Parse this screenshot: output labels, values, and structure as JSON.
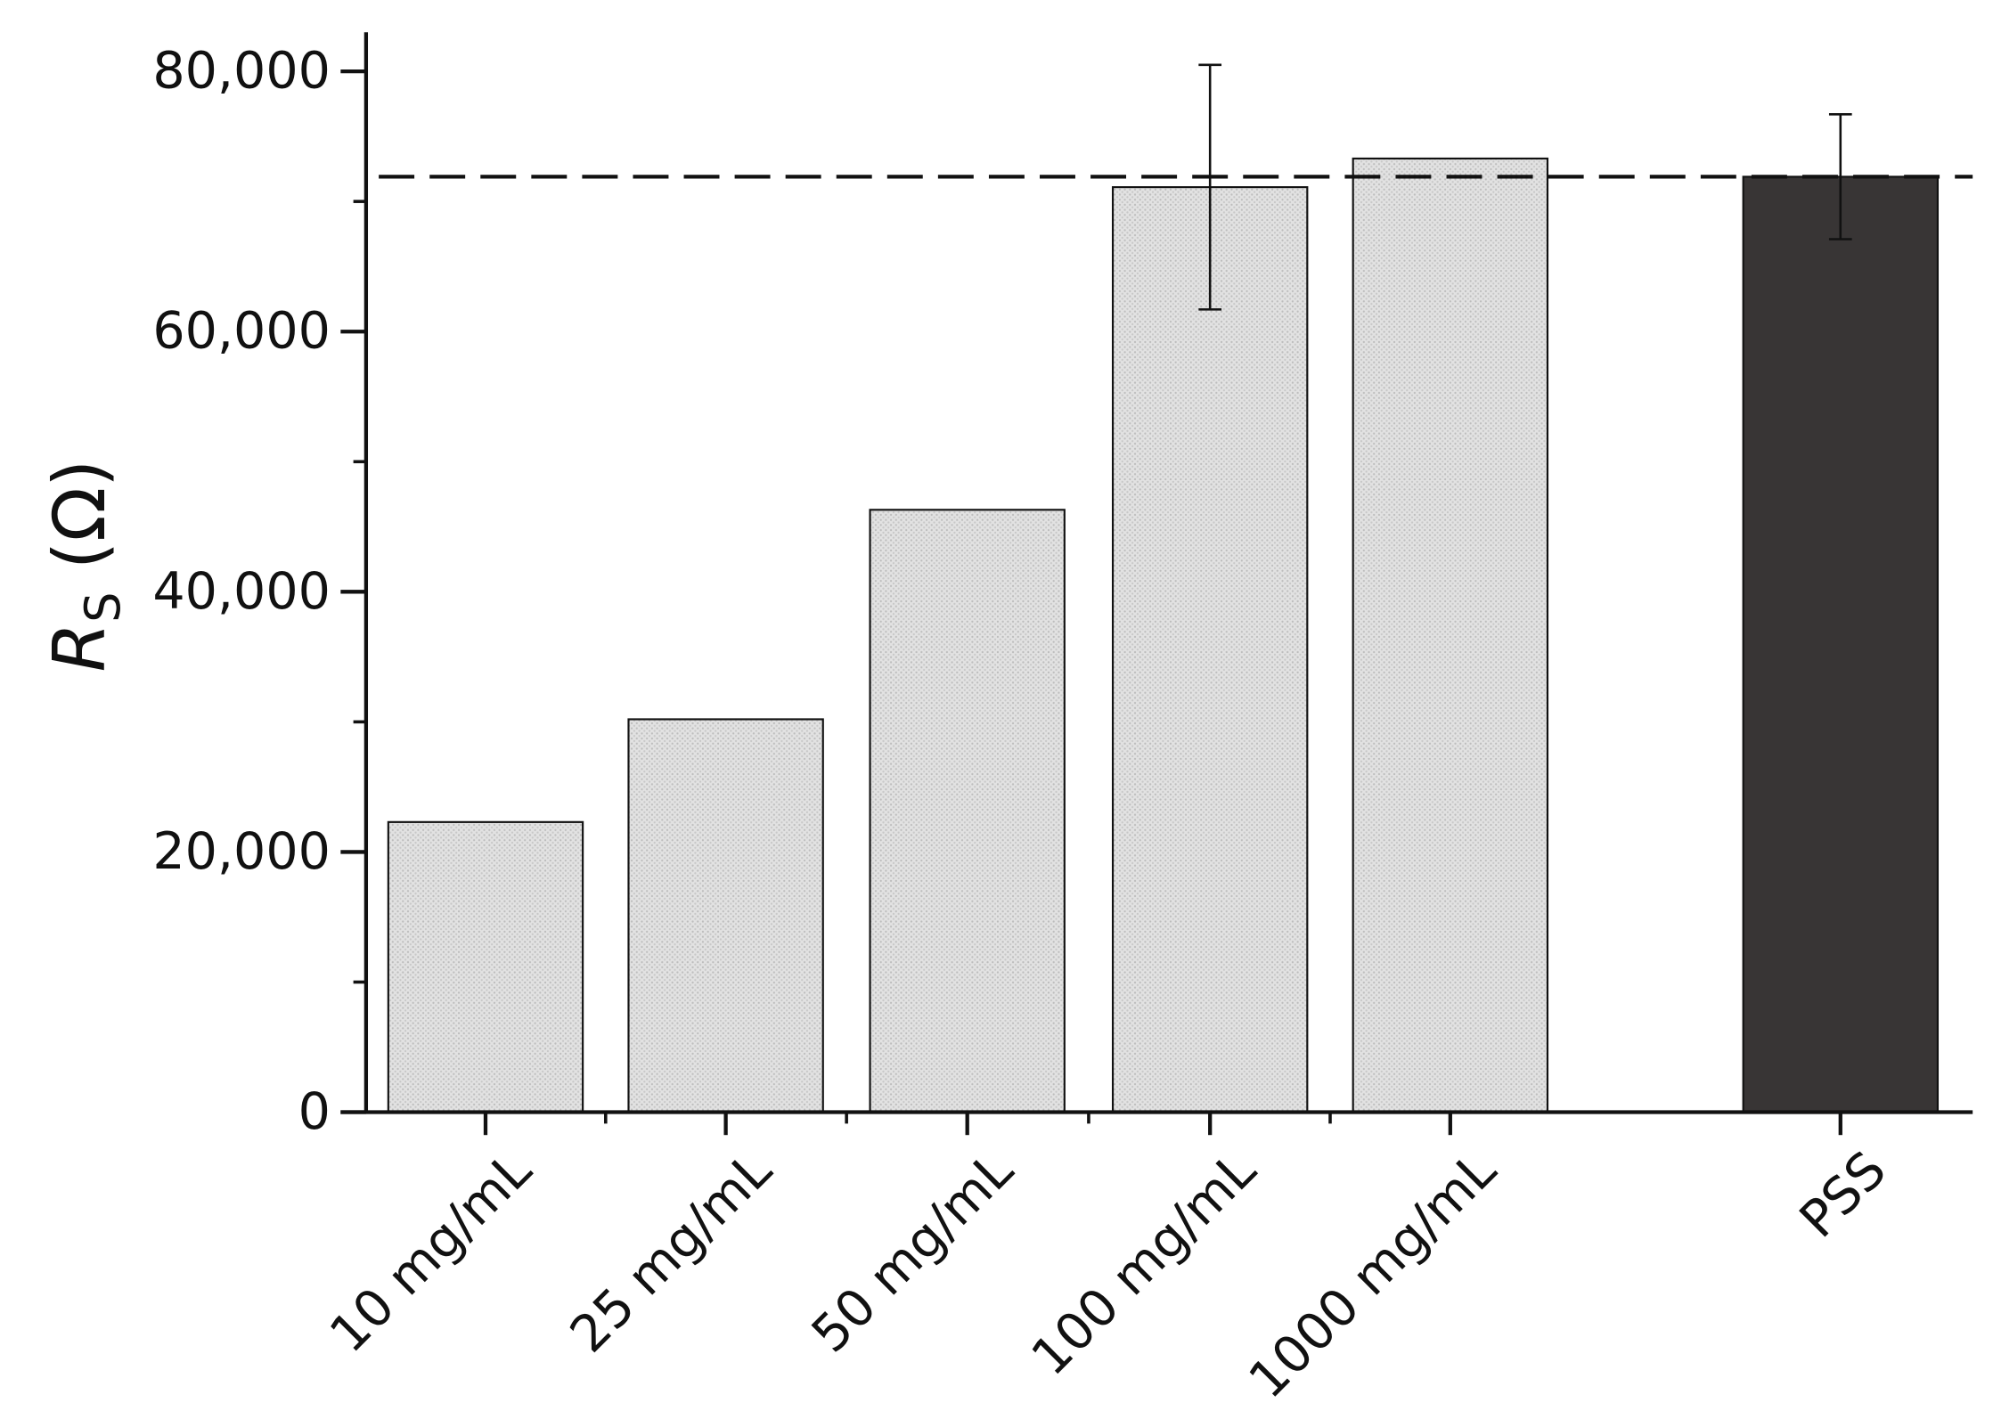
{
  "chart_data": {
    "type": "bar",
    "ylabel": {
      "symbol": "R",
      "subscript": "S",
      "unit": "(Ω)"
    },
    "categories": [
      "10 mg/mL",
      "25 mg/mL",
      "50 mg/mL",
      "100 mg/mL",
      "1000 mg/mL",
      "PSS"
    ],
    "values": [
      22300,
      30200,
      46300,
      71100,
      73300,
      71900
    ],
    "errors": [
      null,
      null,
      null,
      9400,
      null,
      4800
    ],
    "colors": [
      "#d9d9d9",
      "#d9d9d9",
      "#d9d9d9",
      "#d9d9d9",
      "#d9d9d9",
      "#383535"
    ],
    "reference_line": 71900,
    "ylim": [
      0,
      83000
    ],
    "yticks": [
      0,
      {
        "value": 20000,
        "label": "20,000"
      },
      {
        "value": 40000,
        "label": "40,000"
      },
      {
        "value": 60000,
        "label": "60,000"
      },
      {
        "value": 80000,
        "label": "80,000"
      }
    ],
    "y_minor_ticks": [
      10000,
      30000,
      50000,
      70000
    ]
  }
}
